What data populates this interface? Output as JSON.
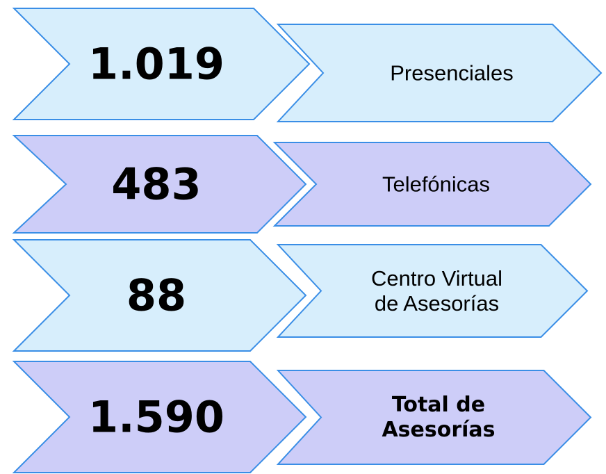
{
  "rows": [
    {
      "value": "1.019",
      "label": [
        "Presenciales"
      ]
    },
    {
      "value": "483",
      "label": [
        "Telefónicas"
      ]
    },
    {
      "value": "88",
      "label": [
        "Centro Virtual",
        "de Asesorías"
      ]
    },
    {
      "value": "1.590",
      "label": [
        "Total de",
        "Asesorías"
      ]
    }
  ]
}
